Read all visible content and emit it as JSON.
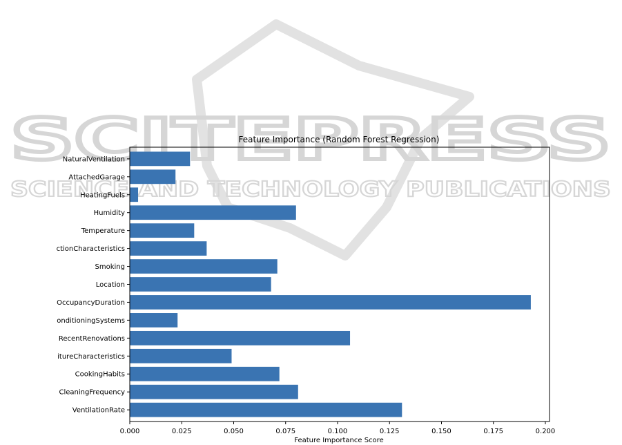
{
  "watermark": {
    "line1": "SCITEPRESS",
    "line2": "SCIENCE AND TECHNOLOGY PUBLICATIONS"
  },
  "chart_data": {
    "type": "bar",
    "orientation": "horizontal",
    "title": "Feature Importance (Random Forest Regression)",
    "xlabel": "Feature Importance Score",
    "ylabel": "",
    "xlim": [
      0,
      0.202
    ],
    "xticks": [
      "0.000",
      "0.025",
      "0.050",
      "0.075",
      "0.100",
      "0.125",
      "0.150",
      "0.175",
      "0.200"
    ],
    "bar_color": "#3a74b2",
    "grid": false,
    "categories": [
      "NaturalVentilation",
      "AttachedGarage",
      "HeatingFuels",
      "Humidity",
      "Temperature",
      "ctionCharacteristics",
      "Smoking",
      "Location",
      "OccupancyDuration",
      "onditioningSystems",
      "RecentRenovations",
      "itureCharacteristics",
      "CookingHabits",
      "CleaningFrequency",
      "VentilationRate"
    ],
    "values": [
      0.029,
      0.022,
      0.004,
      0.08,
      0.031,
      0.037,
      0.071,
      0.068,
      0.193,
      0.023,
      0.106,
      0.049,
      0.072,
      0.081,
      0.131
    ]
  }
}
